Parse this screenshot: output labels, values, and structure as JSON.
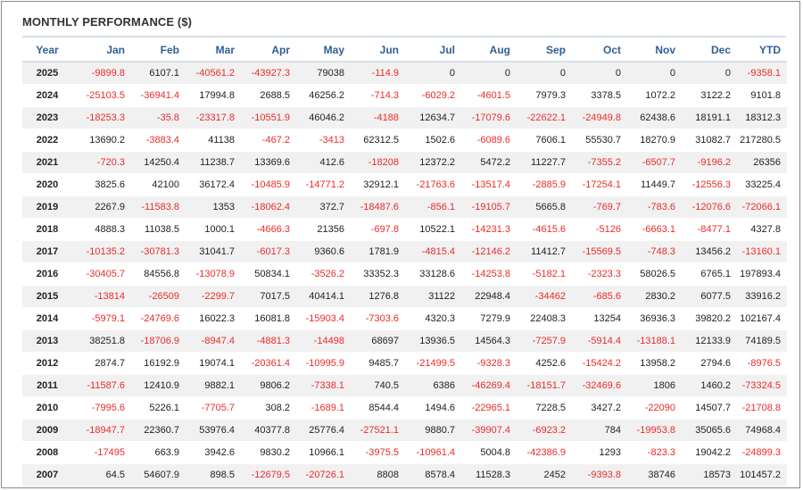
{
  "title": "MONTHLY PERFORMANCE ($)",
  "colors": {
    "header_text": "#2f5f94",
    "negative": "#ec2b2b",
    "positive": "#222222",
    "stripe": "#f1f1f1"
  },
  "columns": [
    "Year",
    "Jan",
    "Feb",
    "Mar",
    "Apr",
    "May",
    "Jun",
    "Jul",
    "Aug",
    "Sep",
    "Oct",
    "Nov",
    "Dec",
    "YTD"
  ],
  "rows": [
    [
      "2025",
      "-9899.8",
      "6107.1",
      "-40561.2",
      "-43927.3",
      "79038",
      "-114.9",
      "0",
      "0",
      "0",
      "0",
      "0",
      "0",
      "-9358.1"
    ],
    [
      "2024",
      "-25103.5",
      "-36941.4",
      "17994.8",
      "2688.5",
      "46256.2",
      "-714.3",
      "-6029.2",
      "-4601.5",
      "7979.3",
      "3378.5",
      "1072.2",
      "3122.2",
      "9101.8"
    ],
    [
      "2023",
      "-18253.3",
      "-35.8",
      "-23317.8",
      "-10551.9",
      "46046.2",
      "-4188",
      "12634.7",
      "-17079.6",
      "-22622.1",
      "-24949.8",
      "62438.6",
      "18191.1",
      "18312.3"
    ],
    [
      "2022",
      "13690.2",
      "-3883.4",
      "41138",
      "-467.2",
      "-3413",
      "62312.5",
      "1502.6",
      "-6089.6",
      "7606.1",
      "55530.7",
      "18270.9",
      "31082.7",
      "217280.5"
    ],
    [
      "2021",
      "-720.3",
      "14250.4",
      "11238.7",
      "13369.6",
      "412.6",
      "-18208",
      "12372.2",
      "5472.2",
      "11227.7",
      "-7355.2",
      "-6507.7",
      "-9196.2",
      "26356"
    ],
    [
      "2020",
      "3825.6",
      "42100",
      "36172.4",
      "-10485.9",
      "-14771.2",
      "32912.1",
      "-21763.6",
      "-13517.4",
      "-2885.9",
      "-17254.1",
      "11449.7",
      "-12556.3",
      "33225.4"
    ],
    [
      "2019",
      "2267.9",
      "-11583.8",
      "1353",
      "-18062.4",
      "372.7",
      "-18487.6",
      "-856.1",
      "-19105.7",
      "5665.8",
      "-769.7",
      "-783.6",
      "-12076.6",
      "-72066.1"
    ],
    [
      "2018",
      "4888.3",
      "11038.5",
      "1000.1",
      "-4666.3",
      "21356",
      "-697.8",
      "10522.1",
      "-14231.3",
      "-4615.6",
      "-5126",
      "-6663.1",
      "-8477.1",
      "4327.8"
    ],
    [
      "2017",
      "-10135.2",
      "-30781.3",
      "31041.7",
      "-6017.3",
      "9360.6",
      "1781.9",
      "-4815.4",
      "-12146.2",
      "11412.7",
      "-15569.5",
      "-748.3",
      "13456.2",
      "-13160.1"
    ],
    [
      "2016",
      "-30405.7",
      "84556.8",
      "-13078.9",
      "50834.1",
      "-3526.2",
      "33352.3",
      "33128.6",
      "-14253.8",
      "-5182.1",
      "-2323.3",
      "58026.5",
      "6765.1",
      "197893.4"
    ],
    [
      "2015",
      "-13814",
      "-26509",
      "-2299.7",
      "7017.5",
      "40414.1",
      "1276.8",
      "31122",
      "22948.4",
      "-34462",
      "-685.6",
      "2830.2",
      "6077.5",
      "33916.2"
    ],
    [
      "2014",
      "-5979.1",
      "-24769.6",
      "16022.3",
      "16081.8",
      "-15903.4",
      "-7303.6",
      "4320.3",
      "7279.9",
      "22408.3",
      "13254",
      "36936.3",
      "39820.2",
      "102167.4"
    ],
    [
      "2013",
      "38251.8",
      "-18706.9",
      "-8947.4",
      "-4881.3",
      "-14498",
      "68697",
      "13936.5",
      "14564.3",
      "-7257.9",
      "-5914.4",
      "-13188.1",
      "12133.9",
      "74189.5"
    ],
    [
      "2012",
      "2874.7",
      "16192.9",
      "19074.1",
      "-20361.4",
      "-10995.9",
      "9485.7",
      "-21499.5",
      "-9328.3",
      "4252.6",
      "-15424.2",
      "13958.2",
      "2794.6",
      "-8976.5"
    ],
    [
      "2011",
      "-11587.6",
      "12410.9",
      "9882.1",
      "9806.2",
      "-7338.1",
      "740.5",
      "6386",
      "-46269.4",
      "-18151.7",
      "-32469.6",
      "1806",
      "1460.2",
      "-73324.5"
    ],
    [
      "2010",
      "-7995.6",
      "5226.1",
      "-7705.7",
      "308.2",
      "-1689.1",
      "8544.4",
      "1494.6",
      "-22965.1",
      "7228.5",
      "3427.2",
      "-22090",
      "14507.7",
      "-21708.8"
    ],
    [
      "2009",
      "-18947.7",
      "22360.7",
      "53976.4",
      "40377.8",
      "25776.4",
      "-27521.1",
      "9880.7",
      "-39907.4",
      "-6923.2",
      "784",
      "-19953.8",
      "35065.6",
      "74968.4"
    ],
    [
      "2008",
      "-17495",
      "663.9",
      "3942.6",
      "9830.2",
      "10966.1",
      "-3975.5",
      "-10961.4",
      "5004.8",
      "-42386.9",
      "1293",
      "-823.3",
      "19042.2",
      "-24899.3"
    ],
    [
      "2007",
      "64.5",
      "54607.9",
      "898.5",
      "-12679.5",
      "-20726.1",
      "8808",
      "8578.4",
      "11528.3",
      "2452",
      "-9393.8",
      "38746",
      "18573",
      "101457.2"
    ]
  ]
}
